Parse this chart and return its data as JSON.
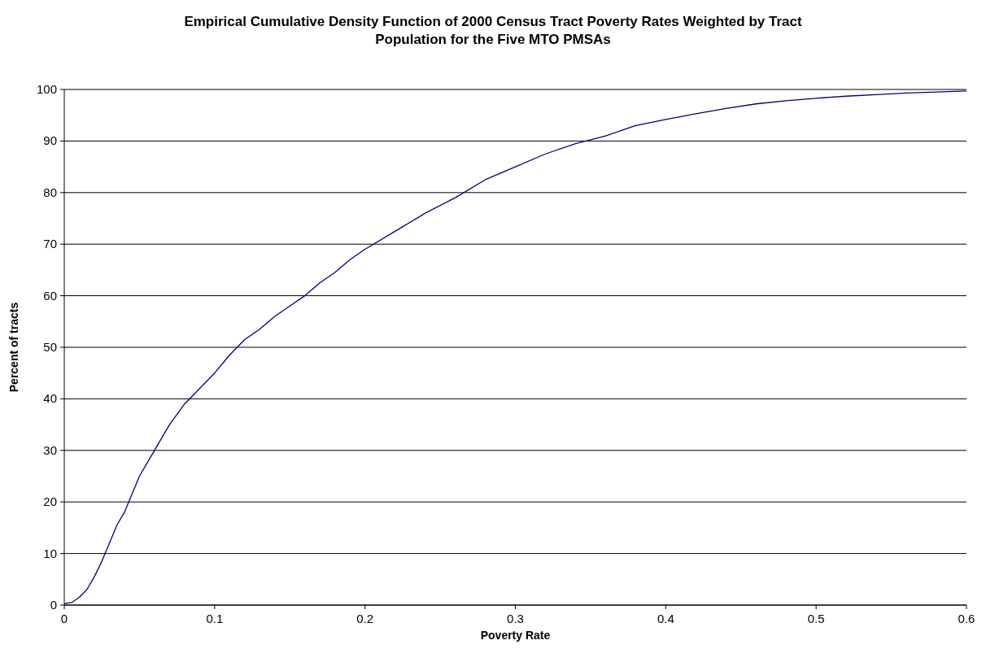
{
  "chart_data": {
    "type": "line",
    "title": "Empirical Cumulative Density Function of 2000 Census Tract Poverty Rates Weighted by Tract Population for the Five MTO PMSAs",
    "xlabel": "Poverty Rate",
    "ylabel": "Percent of tracts",
    "x": [
      0,
      0.005,
      0.01,
      0.015,
      0.02,
      0.025,
      0.03,
      0.035,
      0.04,
      0.045,
      0.05,
      0.055,
      0.06,
      0.065,
      0.07,
      0.08,
      0.09,
      0.1,
      0.11,
      0.12,
      0.13,
      0.14,
      0.15,
      0.16,
      0.17,
      0.18,
      0.19,
      0.2,
      0.22,
      0.24,
      0.26,
      0.28,
      0.3,
      0.32,
      0.34,
      0.36,
      0.38,
      0.4,
      0.42,
      0.44,
      0.46,
      0.48,
      0.5,
      0.52,
      0.54,
      0.56,
      0.58,
      0.6
    ],
    "series": [
      {
        "color": "#000080",
        "values": [
          0.3,
          0.5,
          1.5,
          3,
          5.5,
          8.5,
          12,
          15.5,
          18,
          21.5,
          25,
          27.5,
          30,
          32.5,
          35,
          39,
          42,
          45,
          48.5,
          51.5,
          53.5,
          56,
          58,
          60,
          62.5,
          64.5,
          67,
          69,
          72.5,
          76,
          79,
          82.5,
          85,
          87.5,
          89.5,
          91,
          93,
          94.2,
          95.3,
          96.3,
          97.2,
          97.8,
          98.3,
          98.7,
          99,
          99.3,
          99.5,
          99.7
        ]
      }
    ],
    "xlim": [
      0,
      0.6
    ],
    "xticks": [
      0,
      0.1,
      0.2,
      0.3,
      0.4,
      0.5,
      0.6
    ],
    "ylim": [
      0,
      100
    ],
    "yticks": [
      0,
      10,
      20,
      30,
      40,
      50,
      60,
      70,
      80,
      90,
      100
    ],
    "grid": "y",
    "marker": "none",
    "line_style": "solid"
  }
}
